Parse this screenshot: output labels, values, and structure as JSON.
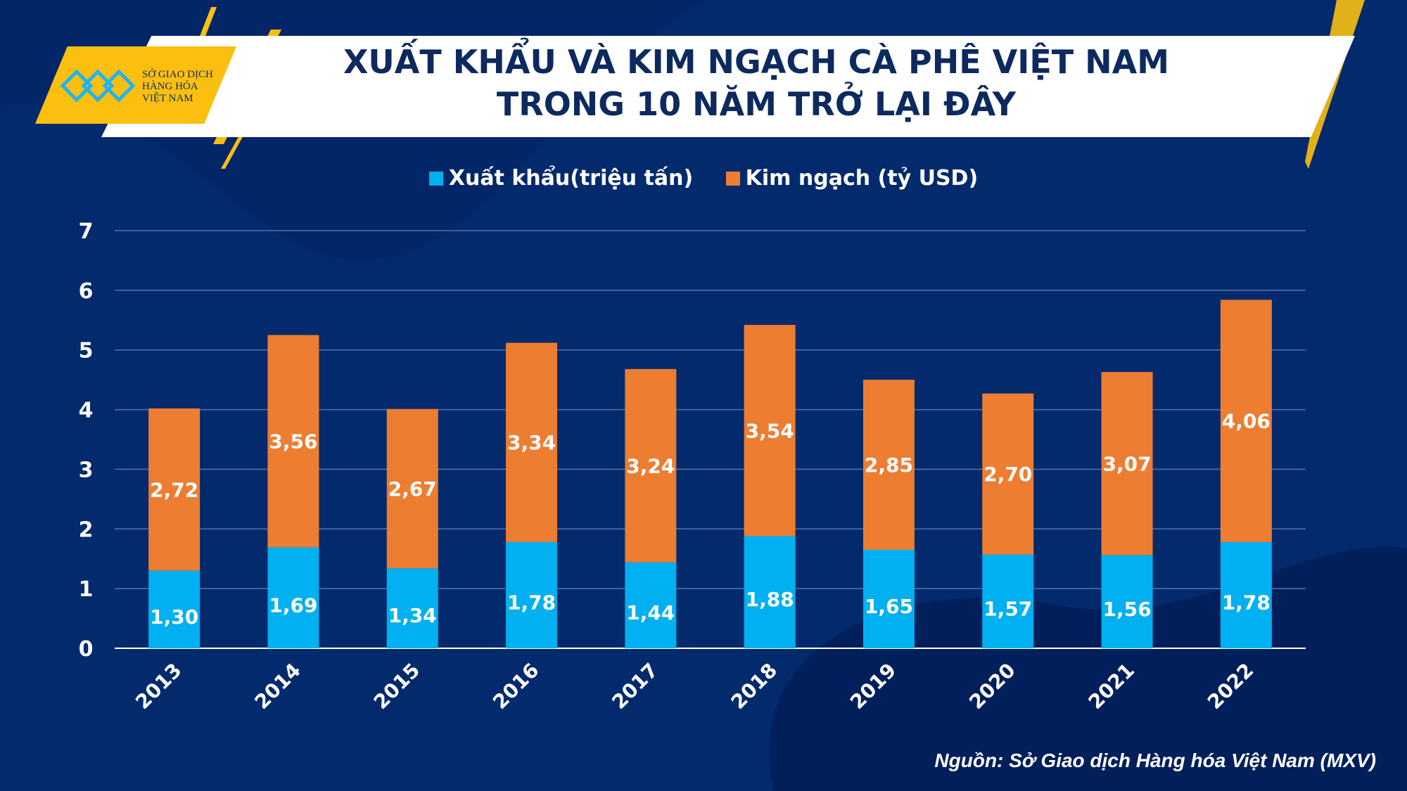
{
  "logo": {
    "lines": [
      "SỞ GIAO DỊCH",
      "HÀNG HÓA",
      "VIỆT NAM"
    ]
  },
  "title": {
    "line1": "XUẤT KHẨU VÀ KIM NGẠCH CÀ PHÊ VIỆT NAM",
    "line2": "TRONG 10 NĂM TRỞ LẠI ĐÂY"
  },
  "source": "Nguồn: Sở Giao dịch Hàng hóa Việt Nam (MXV)",
  "colors": {
    "background": "#022a6c",
    "export": "#00b0f0",
    "value": "#ed7d31",
    "accent": "#fbbf10"
  },
  "chart_data": {
    "type": "bar",
    "stacked": true,
    "categories": [
      "2013",
      "2014",
      "2015",
      "2016",
      "2017",
      "2018",
      "2019",
      "2020",
      "2021",
      "2022"
    ],
    "series": [
      {
        "name": "Xuất khẩu(triệu tấn)",
        "color": "#00b0f0",
        "values": [
          1.3,
          1.69,
          1.34,
          1.78,
          1.44,
          1.88,
          1.65,
          1.57,
          1.56,
          1.78
        ],
        "labels": [
          "1,30",
          "1,69",
          "1,34",
          "1,78",
          "1,44",
          "1,88",
          "1,65",
          "1,57",
          "1,56",
          "1,78"
        ]
      },
      {
        "name": "Kim ngạch (tỷ USD)",
        "color": "#ed7d31",
        "values": [
          2.72,
          3.56,
          2.67,
          3.34,
          3.24,
          3.54,
          2.85,
          2.7,
          3.07,
          4.06
        ],
        "labels": [
          "2,72",
          "3,56",
          "2,67",
          "3,34",
          "3,24",
          "3,54",
          "2,85",
          "2,70",
          "3,07",
          "4,06"
        ]
      }
    ],
    "yticks": [
      "0",
      "1",
      "2",
      "3",
      "4",
      "5",
      "6",
      "7"
    ],
    "ylim": [
      0,
      7
    ],
    "grid": true,
    "legend": "top"
  }
}
